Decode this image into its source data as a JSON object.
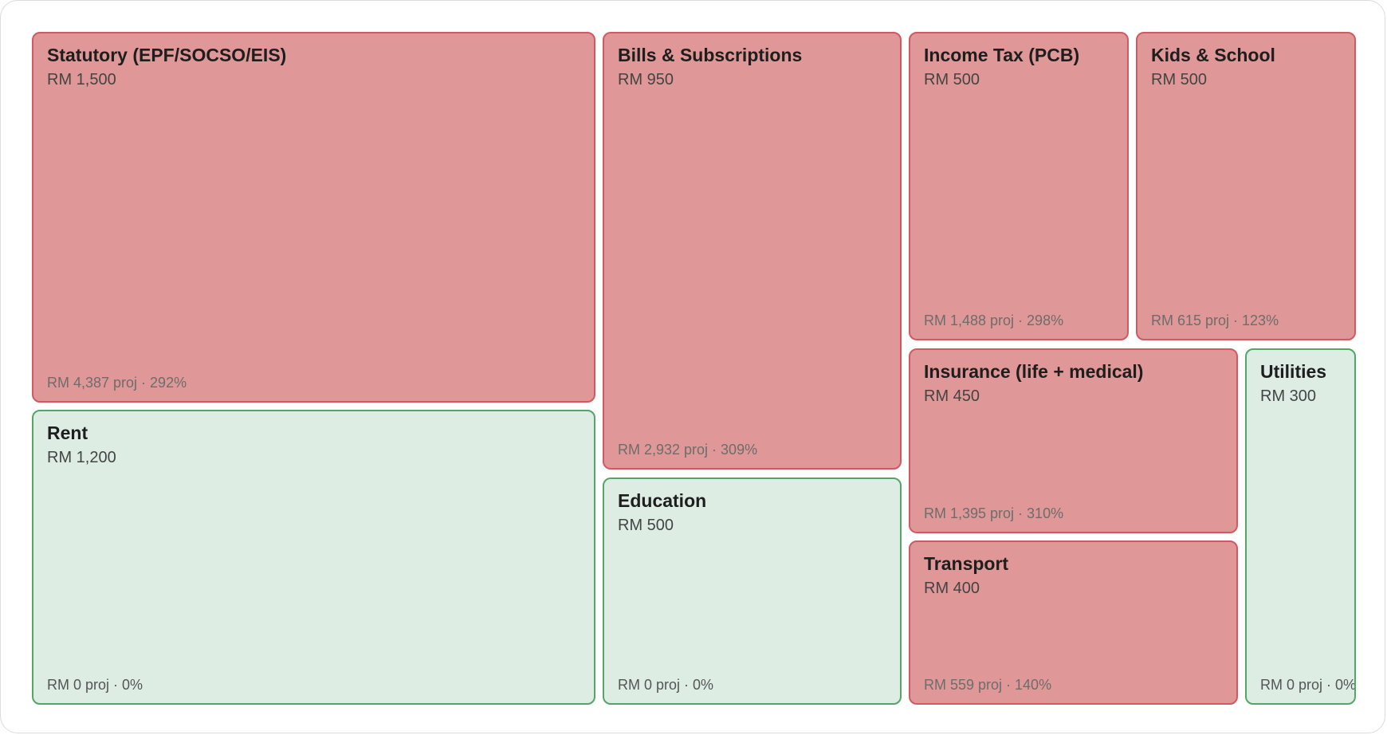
{
  "colors": {
    "over_budget": "#e09797",
    "under_budget": "#deede3"
  },
  "chart_data": {
    "type": "treemap",
    "items": [
      {
        "name": "Statutory (EPF/SOCSO/EIS)",
        "budget": "RM 1,500",
        "projection": "RM 4,387 proj · 292%",
        "budget_value": 1500,
        "projected_value": 4387,
        "pct": 292,
        "status": "over"
      },
      {
        "name": "Rent",
        "budget": "RM 1,200",
        "projection": "RM 0 proj · 0%",
        "budget_value": 1200,
        "projected_value": 0,
        "pct": 0,
        "status": "under"
      },
      {
        "name": "Bills & Subscriptions",
        "budget": "RM 950",
        "projection": "RM 2,932 proj · 309%",
        "budget_value": 950,
        "projected_value": 2932,
        "pct": 309,
        "status": "over"
      },
      {
        "name": "Education",
        "budget": "RM 500",
        "projection": "RM 0 proj · 0%",
        "budget_value": 500,
        "projected_value": 0,
        "pct": 0,
        "status": "under"
      },
      {
        "name": "Income Tax (PCB)",
        "budget": "RM 500",
        "projection": "RM 1,488 proj · 298%",
        "budget_value": 500,
        "projected_value": 1488,
        "pct": 298,
        "status": "over"
      },
      {
        "name": "Kids & School",
        "budget": "RM 500",
        "projection": "RM 615 proj · 123%",
        "budget_value": 500,
        "projected_value": 615,
        "pct": 123,
        "status": "over"
      },
      {
        "name": "Insurance (life + medical)",
        "budget": "RM 450",
        "projection": "RM 1,395 proj · 310%",
        "budget_value": 450,
        "projected_value": 1395,
        "pct": 310,
        "status": "over"
      },
      {
        "name": "Transport",
        "budget": "RM 400",
        "projection": "RM 559 proj · 140%",
        "budget_value": 400,
        "projected_value": 559,
        "pct": 140,
        "status": "over"
      },
      {
        "name": "Utilities",
        "budget": "RM 300",
        "projection": "RM 0 proj · 0%",
        "budget_value": 300,
        "projected_value": 0,
        "pct": 0,
        "status": "under"
      }
    ]
  }
}
